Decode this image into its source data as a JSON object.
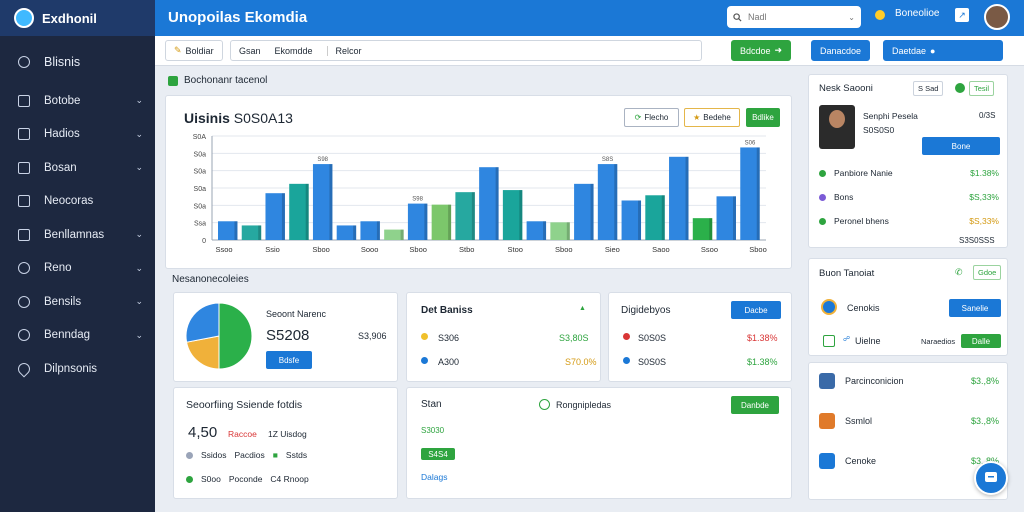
{
  "sidebar": {
    "brand": "Exdhonil",
    "items": [
      {
        "label": "Blisnis",
        "icon": "gear-icon"
      },
      {
        "label": "Botobe",
        "icon": "square-icon"
      },
      {
        "label": "Hadios",
        "icon": "square-icon"
      },
      {
        "label": "Bosan",
        "icon": "chat-icon"
      },
      {
        "label": "Neocoras",
        "icon": "square-icon"
      },
      {
        "label": "Benllamnas",
        "icon": "square-icon"
      },
      {
        "label": "Reno",
        "icon": "refresh-icon"
      },
      {
        "label": "Bensils",
        "icon": "refresh-icon"
      },
      {
        "label": "Benndag",
        "icon": "refresh-icon"
      },
      {
        "label": "Dilpnsonis",
        "icon": "drop-icon"
      }
    ]
  },
  "topbar": {
    "title": "Unopoilas Ekomdia",
    "search_placeholder": "Nadl",
    "user_label": "Boneolioe"
  },
  "toolbar": {
    "btn1": "Boldiar",
    "btn2": "Gsan",
    "btn3": "Ekomdde",
    "btn4": "Relcor",
    "btn5": "Bdcdoe",
    "btn6": "Danacdoe",
    "btn7": "Daetdae"
  },
  "overview": {
    "header": "Bochonanr tacenol",
    "title": "Uisinis",
    "subtitle": "S0S0A13",
    "btn1": "Flecho",
    "btn2": "Bedehe",
    "btn3": "Bdlike"
  },
  "chart_data": {
    "type": "bar",
    "ylim": [
      0,
      100
    ],
    "yticks": [
      "0",
      "Ssa",
      "S0a",
      "S0a",
      "S0a",
      "S0a",
      "S0A"
    ],
    "categories": [
      "Ssoo",
      "Ssio",
      "Sboo",
      "Sooo",
      "Sboo",
      "Stbo",
      "Stoo",
      "Sboo",
      "Sieo",
      "Saoo",
      "Ssoo",
      "Sboo"
    ],
    "series": [
      {
        "values": [
          26,
          25,
          40,
          33,
          20,
          22,
          30,
          19,
          20,
          32,
          19,
          32
        ]
      },
      {
        "values": [
          18,
          45,
          54,
          73,
          18,
          50,
          70,
          47,
          64,
          55,
          60,
          54
        ]
      },
      {
        "values": [
          0,
          0,
          0,
          0,
          0,
          0,
          0,
          0,
          0,
          0,
          0,
          0
        ]
      }
    ],
    "bars": [
      {
        "v": 18,
        "c": "#2f86e0"
      },
      {
        "v": 14,
        "c": "#26a8a0"
      },
      {
        "v": 45,
        "c": "#2f86e0"
      },
      {
        "v": 54,
        "c": "#1aa59b"
      },
      {
        "v": 73,
        "c": "#2f86e0"
      },
      {
        "v": 14,
        "c": "#2f86e0"
      },
      {
        "v": 18,
        "c": "#2f86e0"
      },
      {
        "v": 10,
        "c": "#8fd28c"
      },
      {
        "v": 35,
        "c": "#2f86e0"
      },
      {
        "v": 34,
        "c": "#7cc76b"
      },
      {
        "v": 46,
        "c": "#26a8a0"
      },
      {
        "v": 70,
        "c": "#2f86e0"
      },
      {
        "v": 48,
        "c": "#1aa59b"
      },
      {
        "v": 18,
        "c": "#2f86e0"
      },
      {
        "v": 17,
        "c": "#8fd28c"
      },
      {
        "v": 54,
        "c": "#2f86e0"
      },
      {
        "v": 73,
        "c": "#2f86e0"
      },
      {
        "v": 38,
        "c": "#2f86e0"
      },
      {
        "v": 43,
        "c": "#1aa59b"
      },
      {
        "v": 80,
        "c": "#2f86e0"
      },
      {
        "v": 21,
        "c": "#2bb04a"
      },
      {
        "v": 42,
        "c": "#2f86e0"
      },
      {
        "v": 89,
        "c": "#2f86e0"
      }
    ],
    "annotations": [
      "S98",
      "S98",
      "S8S",
      "S06"
    ]
  },
  "section2_header": "Nesanonecoleies",
  "pie_card": {
    "title": "Seoont Narenc",
    "value": "S5208",
    "side_value": "S3,906",
    "btn": "Bdsfe",
    "slices": [
      {
        "v": 50,
        "c": "#2bb04a"
      },
      {
        "v": 22,
        "c": "#f0b13a"
      },
      {
        "v": 28,
        "c": "#2f86e0"
      }
    ]
  },
  "det_card": {
    "title": "Det Baniss",
    "rows": [
      {
        "label": "S306",
        "value": "S3,80S"
      },
      {
        "label": "A300",
        "value": "S70.0%"
      }
    ]
  },
  "dig_card": {
    "title": "Digidebyos",
    "btn": "Dacbe",
    "rows": [
      {
        "label": "S0S0S",
        "value": "$1.38%"
      },
      {
        "label": "S0S0S",
        "value": "$1.38%"
      }
    ]
  },
  "seo_card": {
    "title": "Seoorfiing Ssiende fotdis",
    "num": "4,50",
    "r1a": "Raccoe",
    "r1b": "1Z Uisdog",
    "r2a": "Ssidos",
    "r2b": "Pacdios",
    "r2c": "Sstds",
    "r3a": "S0oo",
    "r3b": "Poconde",
    "r3c": "C4 Rnoop"
  },
  "stan_card": {
    "title": "Stan",
    "status": "Rongnipledas",
    "btn": "Danbde",
    "v1": "S3030",
    "pill": "S4S4",
    "v2": "Dalags"
  },
  "right1": {
    "title": "Nesk Saooni",
    "badge": "S Sad",
    "badge2": "Tesil",
    "name": "Senphi Pesela",
    "sub": "S0S0S0",
    "pct": "0/3S",
    "btn": "Bone",
    "rows": [
      {
        "label": "Panbiore Nanie",
        "value": "$1.38%",
        "color": "#2ea43f"
      },
      {
        "label": "Bons",
        "value": "$S,33%",
        "color": "#2ea43f"
      },
      {
        "label": "Peronel bhens",
        "value": "$S,33%",
        "color": "#d49a13"
      }
    ],
    "foot": "S3S0SSS"
  },
  "right2": {
    "title": "Buon Tanoiat",
    "badge": "Gdoe",
    "r1": "Cenokis",
    "btn": "Sanelie",
    "r2": "Uielne",
    "r2b": "Naraedios",
    "btn2": "Dalle"
  },
  "right3": {
    "rows": [
      {
        "label": "Parcinconicion",
        "value": "$3.,8%"
      },
      {
        "label": "Ssmlol",
        "value": "$3.,8%"
      },
      {
        "label": "Cenoke",
        "value": "$3.,8%"
      }
    ]
  }
}
